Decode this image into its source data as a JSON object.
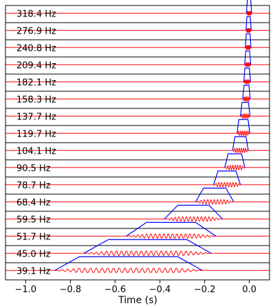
{
  "chart_data": {
    "type": "line",
    "xlabel": "Time (s)",
    "xlim": [
      -1.09,
      0.09
    ],
    "xticks": [
      -1.0,
      -0.8,
      -0.6,
      -0.4,
      -0.2,
      0.0
    ],
    "xtick_labels": [
      "−1.0",
      "−0.8",
      "−0.6",
      "−0.4",
      "−0.2",
      "0.0"
    ],
    "colors": {
      "envelope": "#0000ff",
      "signal": "#ff0000",
      "frame": "#000000"
    },
    "bands": [
      {
        "label": "318.4 Hz",
        "freq": 318.4,
        "start": -0.013,
        "end": 0.01,
        "ramp": 0.004
      },
      {
        "label": "276.9 Hz",
        "freq": 276.9,
        "start": -0.015,
        "end": 0.008,
        "ramp": 0.004
      },
      {
        "label": "240.8 Hz",
        "freq": 240.8,
        "start": -0.018,
        "end": 0.007,
        "ramp": 0.004
      },
      {
        "label": "209.4 Hz",
        "freq": 209.4,
        "start": -0.021,
        "end": 0.006,
        "ramp": 0.005
      },
      {
        "label": "182.1 Hz",
        "freq": 182.1,
        "start": -0.025,
        "end": 0.005,
        "ramp": 0.005
      },
      {
        "label": "158.3 Hz",
        "freq": 158.3,
        "start": -0.03,
        "end": 0.004,
        "ramp": 0.006
      },
      {
        "label": "137.7 Hz",
        "freq": 137.7,
        "start": -0.04,
        "end": 0.003,
        "ramp": 0.007
      },
      {
        "label": "119.7 Hz",
        "freq": 119.7,
        "start": -0.055,
        "end": 0.002,
        "ramp": 0.008
      },
      {
        "label": "104.1 Hz",
        "freq": 104.1,
        "start": -0.075,
        "end": -0.005,
        "ramp": 0.01
      },
      {
        "label": "90.5 Hz",
        "freq": 90.5,
        "start": -0.11,
        "end": -0.02,
        "ramp": 0.015
      },
      {
        "label": "78.7 Hz",
        "freq": 78.7,
        "start": -0.16,
        "end": -0.04,
        "ramp": 0.02
      },
      {
        "label": "68.4 Hz",
        "freq": 68.4,
        "start": -0.24,
        "end": -0.07,
        "ramp": 0.035
      },
      {
        "label": "59.5 Hz",
        "freq": 59.5,
        "start": -0.38,
        "end": -0.12,
        "ramp": 0.06
      },
      {
        "label": "51.7 Hz",
        "freq": 51.7,
        "start": -0.55,
        "end": -0.15,
        "ramp": 0.09
      },
      {
        "label": "45.0 Hz",
        "freq": 45.0,
        "start": -0.74,
        "end": -0.17,
        "ramp": 0.11
      },
      {
        "label": "39.1 Hz",
        "freq": 39.1,
        "start": -0.87,
        "end": -0.21,
        "ramp": 0.11
      }
    ]
  }
}
